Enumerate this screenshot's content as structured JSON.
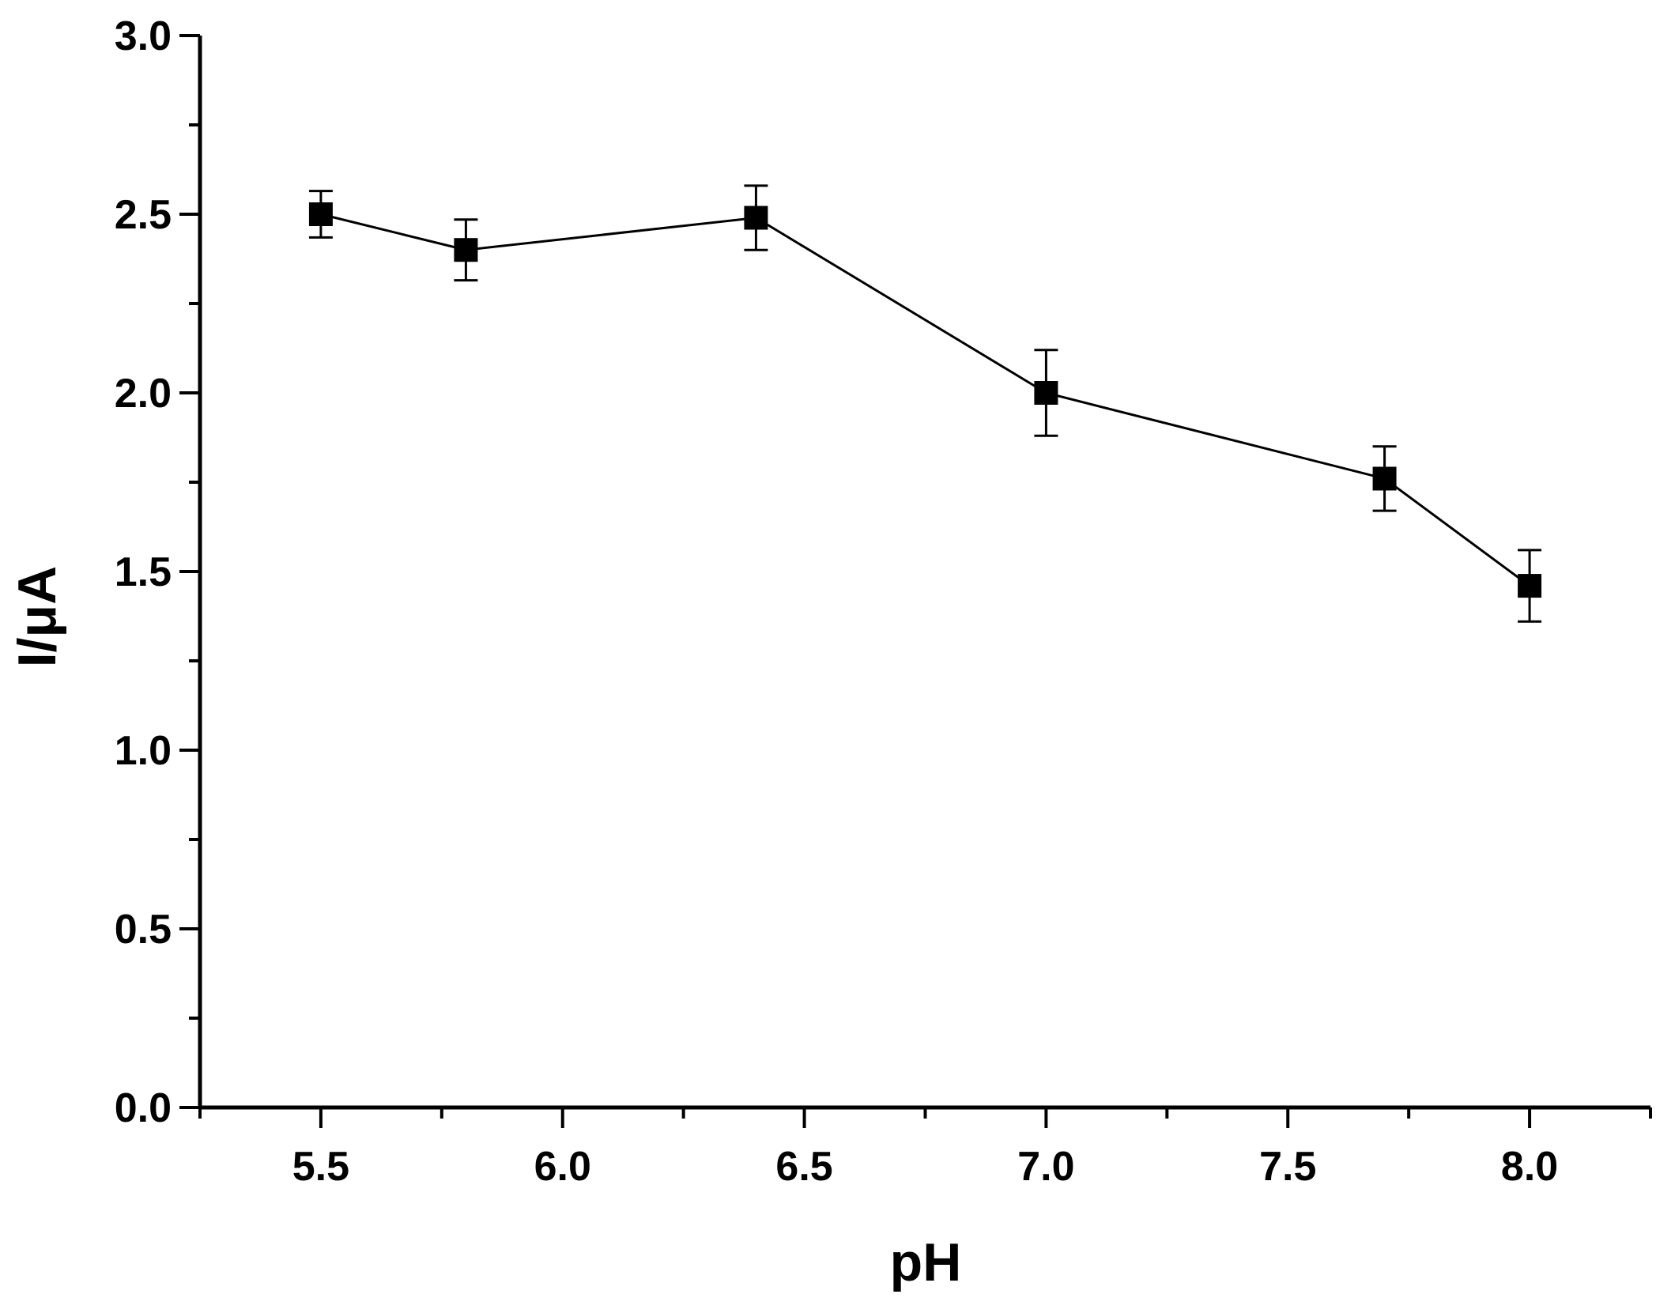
{
  "chart_data": {
    "type": "line",
    "title": "",
    "xlabel": "pH",
    "ylabel": "I/μA",
    "xlim": [
      5.25,
      8.25
    ],
    "ylim": [
      0.0,
      3.0
    ],
    "x_major_ticks": [
      5.5,
      6.0,
      6.5,
      7.0,
      7.5,
      8.0
    ],
    "x_tick_labels": [
      "5.5",
      "6.0",
      "6.5",
      "7.0",
      "7.5",
      "8.0"
    ],
    "x_minor_ticks": [
      5.25,
      5.75,
      6.25,
      6.75,
      7.25,
      7.75,
      8.25
    ],
    "y_major_ticks": [
      0.0,
      0.5,
      1.0,
      1.5,
      2.0,
      2.5,
      3.0
    ],
    "y_tick_labels": [
      "0.0",
      "0.5",
      "1.0",
      "1.5",
      "2.0",
      "2.5",
      "3.0"
    ],
    "y_minor_ticks": [
      0.25,
      0.75,
      1.25,
      1.75,
      2.25,
      2.75
    ],
    "grid": false,
    "legend": "none",
    "colors": {
      "line": "#000000",
      "marker": "#000000",
      "axis": "#000000",
      "background": "#ffffff"
    },
    "marker": "square",
    "series": [
      {
        "x": [
          5.5,
          5.8,
          6.4,
          7.0,
          7.7,
          8.0
        ],
        "y": [
          2.5,
          2.4,
          2.49,
          2.0,
          1.76,
          1.46
        ],
        "error": [
          0.065,
          0.085,
          0.09,
          0.12,
          0.09,
          0.1
        ]
      }
    ]
  }
}
